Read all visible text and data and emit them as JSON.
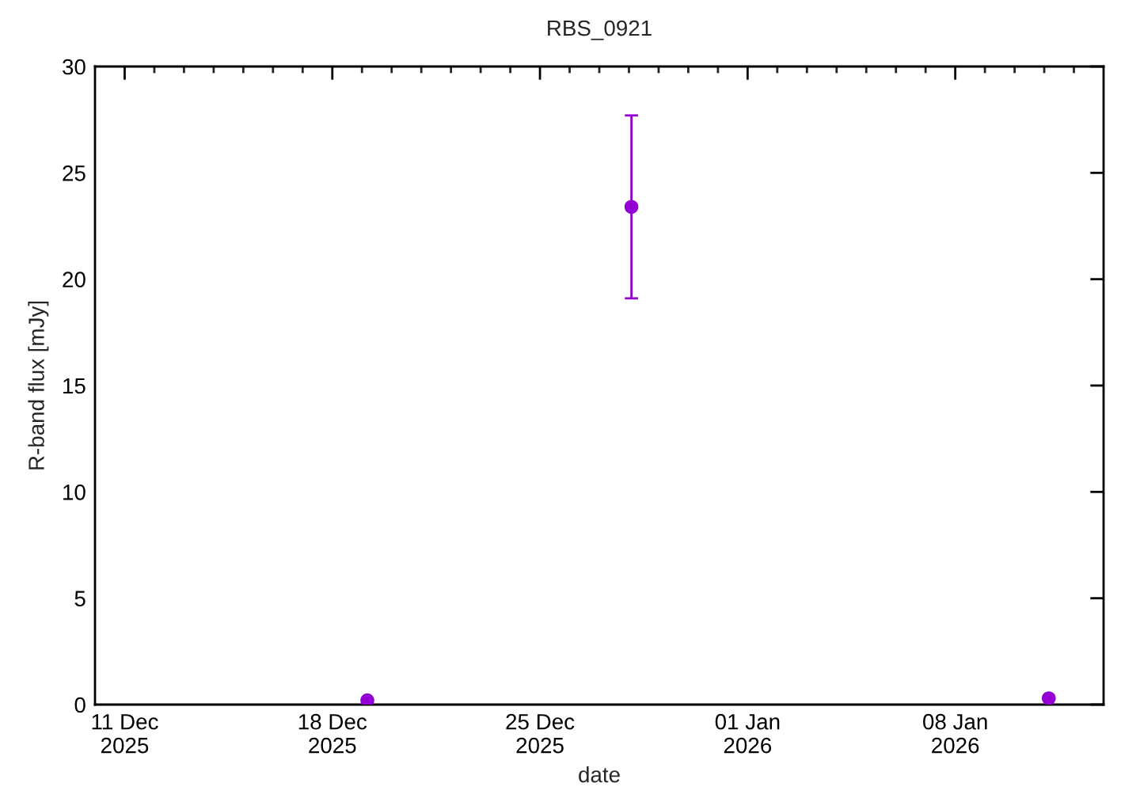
{
  "chart_data": {
    "type": "scatter",
    "title": "RBS_0921",
    "xlabel": "date",
    "ylabel": "R-band flux [mJy]",
    "x": [
      "2025-12-19T04:20",
      "2025-12-28T02:00",
      "2026-01-11T03:40"
    ],
    "series": [
      {
        "color": "#9400d3",
        "values": [
          0.2,
          23.4,
          0.3
        ],
        "errors": [
          null,
          4.3,
          null
        ]
      }
    ],
    "marker": "circle",
    "xlim": [
      "2025-12-10",
      "2026-01-13"
    ],
    "xticks": [
      {
        "value": "2025-12-11",
        "label": "11 Dec\n2025"
      },
      {
        "value": "2025-12-12",
        "label": null
      },
      {
        "value": "2025-12-13",
        "label": null
      },
      {
        "value": "2025-12-14",
        "label": null
      },
      {
        "value": "2025-12-15",
        "label": null
      },
      {
        "value": "2025-12-16",
        "label": null
      },
      {
        "value": "2025-12-17",
        "label": null
      },
      {
        "value": "2025-12-18",
        "label": "18 Dec\n2025"
      },
      {
        "value": "2025-12-19",
        "label": null
      },
      {
        "value": "2025-12-20",
        "label": null
      },
      {
        "value": "2025-12-21",
        "label": null
      },
      {
        "value": "2025-12-22",
        "label": null
      },
      {
        "value": "2025-12-23",
        "label": null
      },
      {
        "value": "2025-12-24",
        "label": null
      },
      {
        "value": "2025-12-25",
        "label": "25 Dec\n2025"
      },
      {
        "value": "2025-12-26",
        "label": null
      },
      {
        "value": "2025-12-27",
        "label": null
      },
      {
        "value": "2025-12-28",
        "label": null
      },
      {
        "value": "2025-12-29",
        "label": null
      },
      {
        "value": "2025-12-30",
        "label": null
      },
      {
        "value": "2025-12-31",
        "label": null
      },
      {
        "value": "2026-01-01",
        "label": "01 Jan\n2026"
      },
      {
        "value": "2026-01-02",
        "label": null
      },
      {
        "value": "2026-01-03",
        "label": null
      },
      {
        "value": "2026-01-04",
        "label": null
      },
      {
        "value": "2026-01-05",
        "label": null
      },
      {
        "value": "2026-01-06",
        "label": null
      },
      {
        "value": "2026-01-07",
        "label": null
      },
      {
        "value": "2026-01-08",
        "label": "08 Jan\n2026"
      },
      {
        "value": "2026-01-09",
        "label": null
      },
      {
        "value": "2026-01-10",
        "label": null
      },
      {
        "value": "2026-01-11",
        "label": null
      },
      {
        "value": "2026-01-12",
        "label": null
      }
    ],
    "ylim": [
      0,
      30
    ],
    "yticks": [
      0,
      5,
      10,
      15,
      20,
      25,
      30
    ]
  }
}
